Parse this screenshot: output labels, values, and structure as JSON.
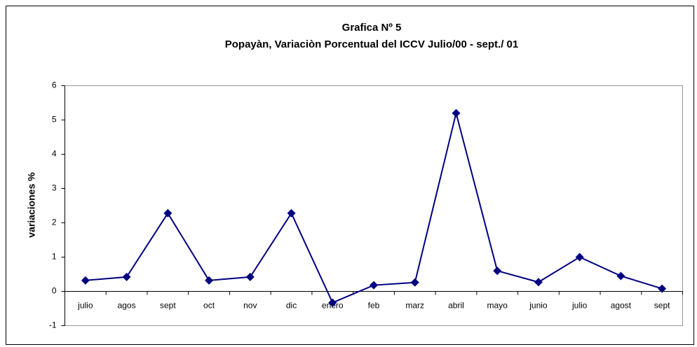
{
  "chart_data": {
    "type": "line",
    "title": "Grafica Nº 5",
    "subtitle": "Popayàn, Variaciòn Porcentual del ICCV Julio/00  - sept./ 01",
    "y_label": "variaciones %",
    "categories": [
      "julio",
      "agos",
      "sept",
      "oct",
      "nov",
      "dic",
      "enero",
      "feb",
      "marz",
      "abril",
      "mayo",
      "junio",
      "julio",
      "agost",
      "sept"
    ],
    "series": [
      {
        "name": "variaciones %",
        "color": "#000080",
        "values": [
          0.32,
          0.42,
          2.28,
          0.32,
          0.42,
          2.28,
          -0.33,
          0.18,
          0.26,
          5.2,
          0.6,
          0.27,
          1.0,
          0.45,
          0.08
        ]
      }
    ],
    "ylim": [
      -1,
      6
    ],
    "yticks": [
      -1,
      0,
      1,
      2,
      3,
      4,
      5,
      6
    ],
    "grid": false
  }
}
